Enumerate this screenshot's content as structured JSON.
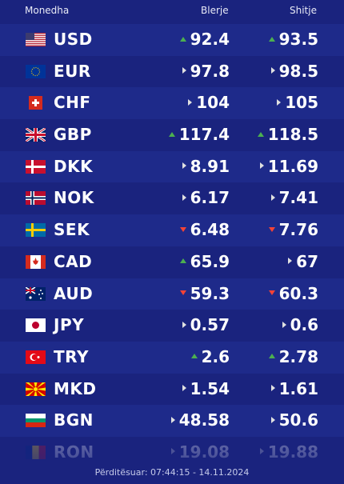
{
  "header": {
    "currency": "Monedha",
    "buy": "Blerje",
    "sell": "Shitje"
  },
  "rows": [
    {
      "code": "USD",
      "buy": "92.4",
      "buy_dir": "up",
      "sell": "93.5",
      "sell_dir": "up"
    },
    {
      "code": "EUR",
      "buy": "97.8",
      "buy_dir": "flat",
      "sell": "98.5",
      "sell_dir": "flat"
    },
    {
      "code": "CHF",
      "buy": "104",
      "buy_dir": "flat",
      "sell": "105",
      "sell_dir": "flat"
    },
    {
      "code": "GBP",
      "buy": "117.4",
      "buy_dir": "up",
      "sell": "118.5",
      "sell_dir": "up"
    },
    {
      "code": "DKK",
      "buy": "8.91",
      "buy_dir": "flat",
      "sell": "11.69",
      "sell_dir": "flat"
    },
    {
      "code": "NOK",
      "buy": "6.17",
      "buy_dir": "flat",
      "sell": "7.41",
      "sell_dir": "flat"
    },
    {
      "code": "SEK",
      "buy": "6.48",
      "buy_dir": "down",
      "sell": "7.76",
      "sell_dir": "down"
    },
    {
      "code": "CAD",
      "buy": "65.9",
      "buy_dir": "up",
      "sell": "67",
      "sell_dir": "flat"
    },
    {
      "code": "AUD",
      "buy": "59.3",
      "buy_dir": "down",
      "sell": "60.3",
      "sell_dir": "down"
    },
    {
      "code": "JPY",
      "buy": "0.57",
      "buy_dir": "flat",
      "sell": "0.6",
      "sell_dir": "flat"
    },
    {
      "code": "TRY",
      "buy": "2.6",
      "buy_dir": "up",
      "sell": "2.78",
      "sell_dir": "up"
    },
    {
      "code": "MKD",
      "buy": "1.54",
      "buy_dir": "flat",
      "sell": "1.61",
      "sell_dir": "flat"
    },
    {
      "code": "BGN",
      "buy": "48.58",
      "buy_dir": "flat",
      "sell": "50.6",
      "sell_dir": "flat"
    },
    {
      "code": "RON",
      "buy": "19.08",
      "buy_dir": "flat",
      "sell": "19.88",
      "sell_dir": "flat"
    }
  ],
  "footer": "Përditësuar: 07:44:15 - 14.11.2024",
  "colors": {
    "background": "#1a237e",
    "row_alt": "#1e2a8a",
    "up": "#4caf50",
    "down": "#f44336"
  }
}
